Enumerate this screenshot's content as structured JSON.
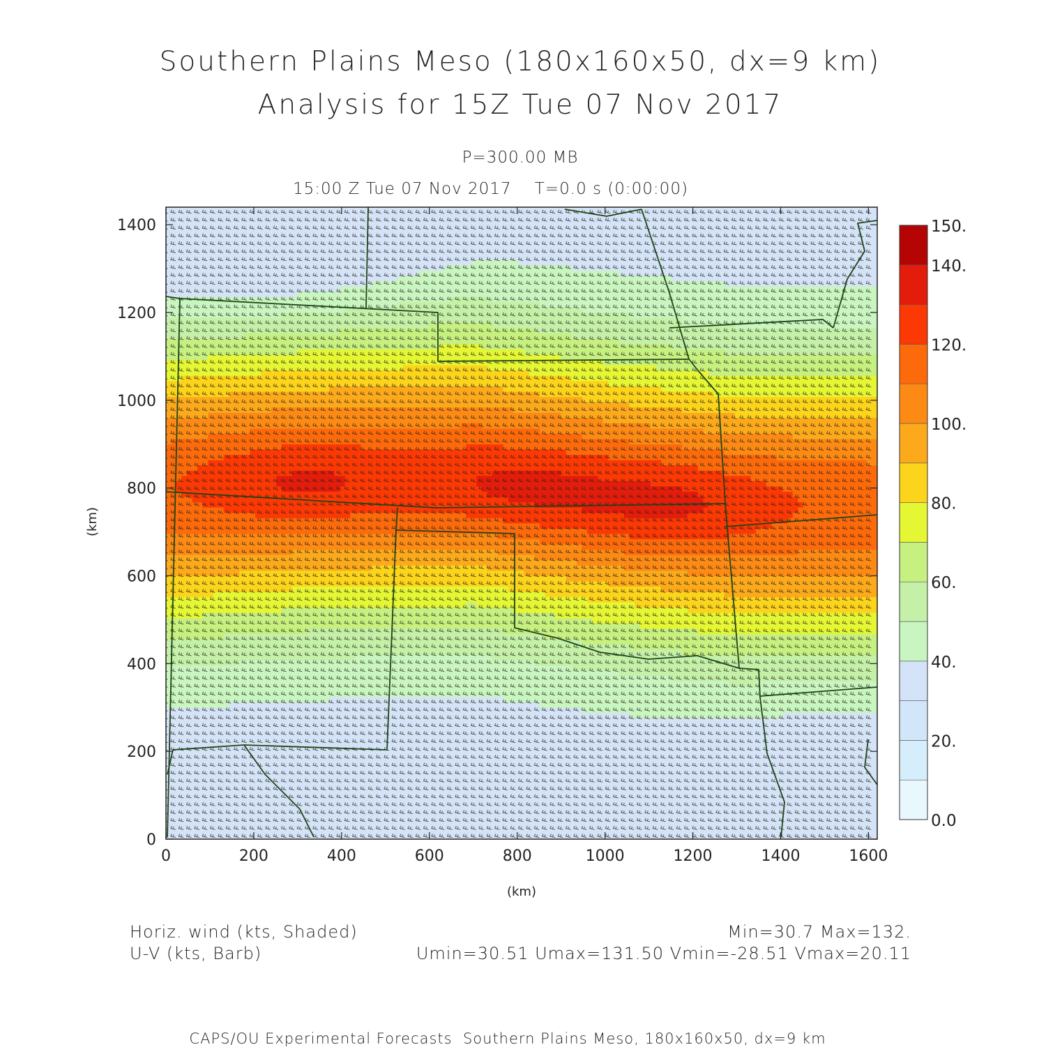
{
  "header": {
    "title_line1": "Southern Plains Meso (180x160x50, dx=9 km)",
    "title_line2": "Analysis for 15Z Tue 07 Nov 2017",
    "level": "P=300.00 MB",
    "time_line": "15:00 Z Tue 07 Nov 2017    T=0.0 s (0:00:00)"
  },
  "legend_text": {
    "field1": "Horiz. wind (kts, Shaded)",
    "field2": "U-V (kts, Barb)",
    "minmax": "Min=30.7 Max=132.",
    "uv_minmax": "Umin=30.51 Umax=131.50 Vmin=-28.51 Vmax=20.11"
  },
  "footer": "CAPS/OU Experimental Forecasts  Southern Plains Meso, 180x160x50, dx=9 km",
  "chart_data": {
    "type": "heatmap",
    "xlabel": "(km)",
    "ylabel": "(km)",
    "xlim": [
      0,
      1620
    ],
    "ylim": [
      0,
      1440
    ],
    "xticks": [
      0,
      200,
      400,
      600,
      800,
      1000,
      1200,
      1400,
      1600
    ],
    "yticks": [
      0,
      200,
      400,
      600,
      800,
      1000,
      1200,
      1400
    ],
    "grid": false,
    "colorbar": {
      "levels": [
        0,
        10,
        20,
        30,
        40,
        50,
        60,
        70,
        80,
        90,
        100,
        110,
        120,
        130,
        140,
        150
      ],
      "colors": [
        "#e8f8fc",
        "#d6eefb",
        "#d2e6fa",
        "#d4e3f7",
        "#c8f5c0",
        "#c4f0a8",
        "#c6f080",
        "#e4f634",
        "#fcd41c",
        "#fcaa1c",
        "#fc8a14",
        "#fc6a0c",
        "#fc3804",
        "#e41c0c",
        "#cc1408",
        "#b40404"
      ],
      "tick_labels": [
        "0.0",
        "20.",
        "40.",
        "60.",
        "80.",
        "100.",
        "120.",
        "140.",
        "150."
      ],
      "tick_values": [
        0,
        20,
        40,
        60,
        80,
        100,
        120,
        140,
        150
      ]
    },
    "wind_field": {
      "min": 30.7,
      "max": 132,
      "jet_axis": [
        [
          0,
          800
        ],
        [
          300,
          820
        ],
        [
          700,
          830
        ],
        [
          1000,
          790
        ],
        [
          1300,
          760
        ],
        [
          1620,
          760
        ]
      ],
      "core_maxima": [
        [
          320,
          810
        ],
        [
          800,
          800
        ],
        [
          1150,
          760
        ]
      ]
    }
  }
}
